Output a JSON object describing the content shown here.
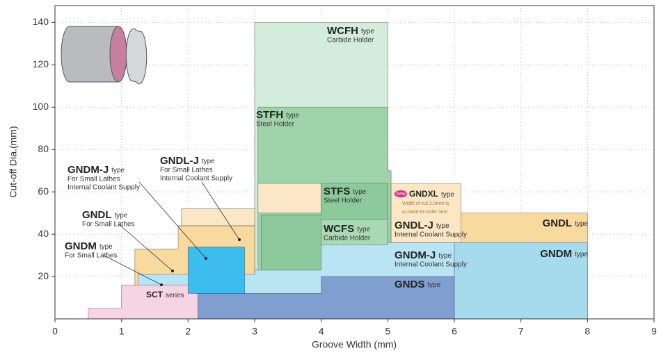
{
  "chart_data": {
    "type": "region",
    "xlabel": "Groove Width (mm)",
    "ylabel": "Cut-off Dia.(mm)",
    "xlim": [
      0,
      9
    ],
    "ylim": [
      0,
      148
    ],
    "xticks": [
      0,
      1,
      2,
      3,
      4,
      5,
      6,
      7,
      8,
      9
    ],
    "yticks": [
      20,
      40,
      60,
      80,
      100,
      120,
      140
    ],
    "grid": true,
    "regions": [
      {
        "color": "#d4ecdb",
        "x": [
          3,
          3,
          5,
          5
        ],
        "y": [
          0,
          140,
          140,
          0
        ]
      },
      {
        "color": "#9fd4aa",
        "x": [
          3.05,
          3.05,
          5,
          5,
          5.05,
          5.05
        ],
        "y": [
          0,
          100,
          100,
          70,
          70,
          0
        ]
      },
      {
        "color": "#f8d99e",
        "x": [
          6,
          6,
          8,
          8
        ],
        "y": [
          0,
          50,
          50,
          0
        ]
      },
      {
        "color": "#fbe7c5",
        "x": [
          3.05,
          3.05,
          4,
          4
        ],
        "y": [
          50,
          64,
          64,
          50
        ]
      },
      {
        "color": "#fbe7c5",
        "x": [
          5.05,
          5.05,
          6.1,
          6.1
        ],
        "y": [
          36,
          64,
          64,
          36
        ]
      },
      {
        "color": "#f8d99e",
        "x": [
          1.2,
          1.2,
          1.85,
          1.85,
          3,
          3
        ],
        "y": [
          0,
          33,
          33,
          44,
          44,
          0
        ]
      },
      {
        "color": "#fbe7c5",
        "x": [
          1.9,
          1.9,
          3,
          3
        ],
        "y": [
          44,
          52,
          52,
          44
        ]
      },
      {
        "color": "#8cca9b",
        "x": [
          3.1,
          3.1,
          4,
          4,
          5,
          5
        ],
        "y": [
          20,
          49,
          49,
          64,
          64,
          20
        ]
      },
      {
        "color": "#b9e4f3",
        "x": [
          1.25,
          1.25,
          3,
          3,
          4,
          4,
          6,
          6
        ],
        "y": [
          0,
          21,
          21,
          23,
          23,
          36,
          36,
          0
        ]
      },
      {
        "color": "#a6dbee",
        "x": [
          6,
          6,
          8,
          8
        ],
        "y": [
          0,
          36,
          36,
          0
        ]
      },
      {
        "color": "#a9d9b3",
        "x": [
          4,
          4,
          5,
          5
        ],
        "y": [
          35,
          47,
          47,
          35
        ]
      },
      {
        "color": "#f7d4e4",
        "x": [
          0.5,
          0.5,
          1,
          1,
          2.15,
          2.15
        ],
        "y": [
          0,
          5,
          5,
          16,
          16,
          0
        ]
      },
      {
        "color": "#7f9fd0",
        "x": [
          2.15,
          2.15,
          4,
          4,
          6,
          6
        ],
        "y": [
          0,
          12,
          12,
          20,
          20,
          0
        ]
      },
      {
        "color": "#3dbcee",
        "x": [
          2,
          2,
          2.85,
          2.85
        ],
        "y": [
          12,
          34,
          34,
          12
        ]
      }
    ],
    "labels": [
      {
        "name": "WCFH",
        "suffix": "type",
        "notes": [
          "Carbide Holder"
        ]
      },
      {
        "name": "STFH",
        "suffix": "type",
        "notes": [
          "Steel Holder"
        ]
      },
      {
        "name": "STFS",
        "suffix": "type",
        "notes": [
          "Steel Holder"
        ]
      },
      {
        "name": "WCFS",
        "suffix": "type",
        "notes": [
          "Carbide Holder"
        ]
      },
      {
        "name": "GNDXL",
        "suffix": "type",
        "notes": [
          "Width of cut 2.0mm is",
          "a made-to-order item"
        ]
      },
      {
        "name": "GNDL-J",
        "suffix": "type",
        "notes": [
          "Internal Coolant Supply"
        ]
      },
      {
        "name": "GNDM-J",
        "suffix": "type",
        "notes": [
          "Internal Coolant Supply"
        ]
      },
      {
        "name": "GNDS",
        "suffix": "type",
        "notes": []
      },
      {
        "name": "GNDL",
        "suffix": "type",
        "notes": []
      },
      {
        "name": "GNDM",
        "suffix": "type",
        "notes": []
      },
      {
        "name": "SCT",
        "suffix": "series",
        "notes": []
      },
      {
        "name": "GNDM",
        "suffix": "type",
        "notes": [
          "For Small Lathes"
        ]
      },
      {
        "name": "GNDL",
        "suffix": "type",
        "notes": [
          "For Small Lathes"
        ]
      },
      {
        "name": "GNDM-J",
        "suffix": "type",
        "notes": [
          "For Small Lathes",
          "Internal Coolant Supply"
        ]
      },
      {
        "name": "GNDL-J",
        "suffix": "type",
        "notes": [
          "For Small Lathes",
          "Internal Coolant Supply"
        ]
      }
    ],
    "badge": "New"
  }
}
